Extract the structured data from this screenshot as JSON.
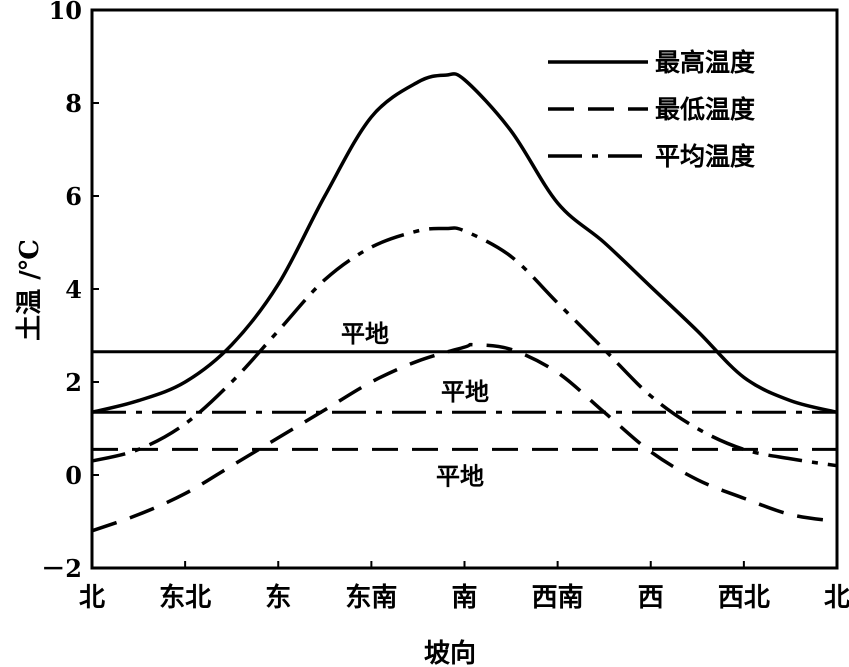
{
  "chart_data": {
    "type": "line",
    "title": "",
    "xlabel": "坡向",
    "ylabel": "土温 /℃",
    "ylim": [
      -2,
      10
    ],
    "yticks": [
      -2,
      0,
      2,
      4,
      6,
      8,
      10
    ],
    "ytick_labels": [
      "－2",
      "0",
      "2",
      "4",
      "6",
      "8",
      "10"
    ],
    "categories": [
      "北",
      "东北",
      "东",
      "东南",
      "南",
      "西南",
      "西",
      "西北",
      "北"
    ],
    "legend_position": "top-right",
    "series": [
      {
        "name": "最高温度",
        "style": "solid",
        "x": [
          0,
          0.5,
          1,
          1.5,
          2,
          2.5,
          3,
          3.5,
          3.8,
          4,
          4.5,
          5,
          5.5,
          6,
          6.5,
          7,
          7.5,
          8
        ],
        "y": [
          1.35,
          1.6,
          2.0,
          2.8,
          4.1,
          6.0,
          7.7,
          8.45,
          8.6,
          8.5,
          7.4,
          5.85,
          5.0,
          4.05,
          3.1,
          2.1,
          1.6,
          1.35
        ]
      },
      {
        "name": "最低温度",
        "style": "dashed",
        "x": [
          0,
          0.5,
          1,
          1.5,
          2,
          2.5,
          3,
          3.5,
          4,
          4.1,
          4.5,
          5,
          5.5,
          6,
          6.5,
          7,
          7.5,
          8
        ],
        "y": [
          -1.2,
          -0.85,
          -0.4,
          0.2,
          0.8,
          1.4,
          2.0,
          2.45,
          2.75,
          2.8,
          2.7,
          2.2,
          1.35,
          0.5,
          -0.1,
          -0.5,
          -0.85,
          -1.0
        ]
      },
      {
        "name": "平均温度",
        "style": "dashdot",
        "x": [
          0,
          0.5,
          1,
          1.5,
          2,
          2.5,
          3,
          3.5,
          3.8,
          4,
          4.5,
          5,
          5.5,
          6,
          6.5,
          7,
          7.5,
          8
        ],
        "y": [
          0.3,
          0.55,
          1.1,
          2.0,
          3.1,
          4.2,
          4.9,
          5.25,
          5.3,
          5.25,
          4.7,
          3.7,
          2.7,
          1.7,
          1.0,
          0.55,
          0.35,
          0.2
        ]
      }
    ],
    "flat_ground": [
      {
        "label": "平地",
        "series": "最高温度",
        "style": "solid",
        "value": 2.65
      },
      {
        "label": "平地",
        "series": "平均温度",
        "style": "dashdot",
        "value": 1.35
      },
      {
        "label": "平地",
        "series": "最低温度",
        "style": "dashed",
        "value": 0.55
      }
    ]
  }
}
